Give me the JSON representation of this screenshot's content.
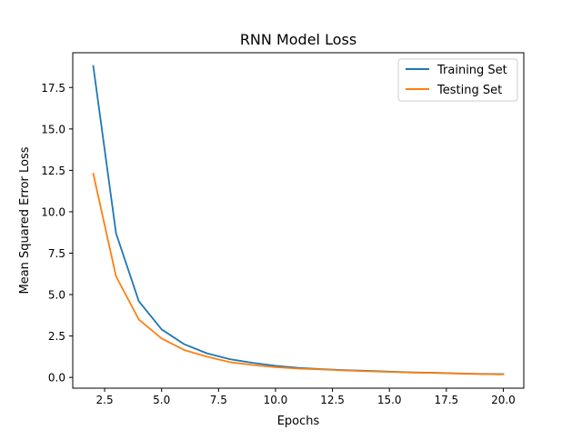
{
  "chart_data": {
    "type": "line",
    "title": "RNN Model Loss",
    "xlabel": "Epochs",
    "ylabel": "Mean Squared Error Loss",
    "xlim": [
      1.1,
      20.9
    ],
    "ylim": [
      -0.65,
      19.6
    ],
    "xticks": [
      2.5,
      5.0,
      7.5,
      10.0,
      12.5,
      15.0,
      17.5,
      20.0
    ],
    "xtick_labels": [
      "2.5",
      "5.0",
      "7.5",
      "10.0",
      "12.5",
      "15.0",
      "17.5",
      "20.0"
    ],
    "yticks": [
      0.0,
      2.5,
      5.0,
      7.5,
      10.0,
      12.5,
      15.0,
      17.5
    ],
    "ytick_labels": [
      "0.0",
      "2.5",
      "5.0",
      "7.5",
      "10.0",
      "12.5",
      "15.0",
      "17.5"
    ],
    "grid": false,
    "legend_position": "top-right",
    "x": [
      2,
      3,
      4,
      5,
      6,
      7,
      8,
      9,
      10,
      11,
      12,
      13,
      14,
      15,
      16,
      17,
      18,
      19,
      20
    ],
    "series": [
      {
        "name": "Training Set",
        "color": "#1f77b4",
        "values": [
          18.8,
          8.7,
          4.6,
          2.9,
          2.0,
          1.45,
          1.1,
          0.88,
          0.7,
          0.58,
          0.5,
          0.44,
          0.4,
          0.35,
          0.3,
          0.28,
          0.24,
          0.21,
          0.2
        ]
      },
      {
        "name": "Testing Set",
        "color": "#ff7f0e",
        "values": [
          12.3,
          6.1,
          3.5,
          2.35,
          1.65,
          1.25,
          0.92,
          0.75,
          0.62,
          0.53,
          0.48,
          0.42,
          0.37,
          0.33,
          0.29,
          0.27,
          0.23,
          0.2,
          0.18
        ]
      }
    ]
  }
}
